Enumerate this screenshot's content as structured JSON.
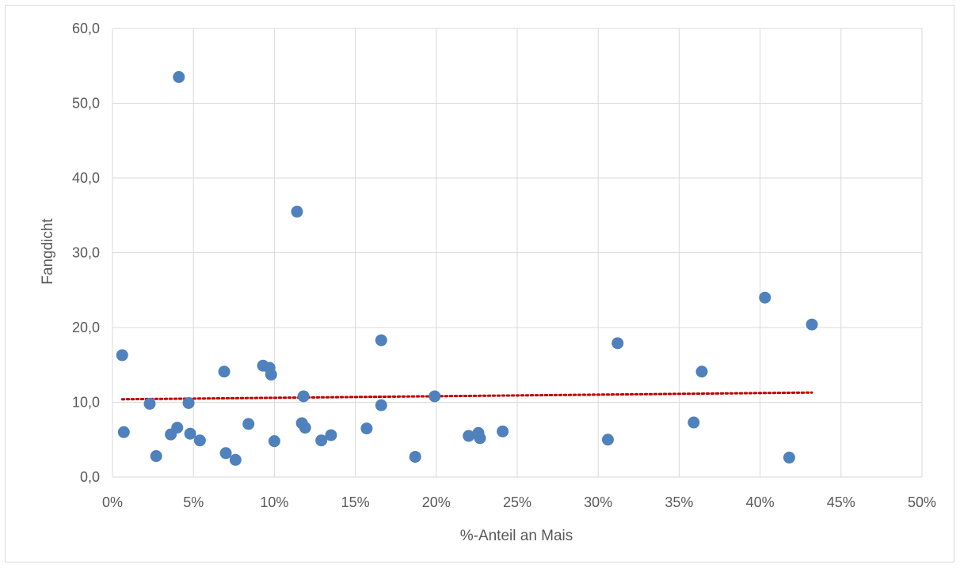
{
  "chart_data": {
    "type": "scatter",
    "xlabel": "%-Anteil an Mais",
    "ylabel": "Fangdicht",
    "xlim": [
      0,
      0.5
    ],
    "ylim": [
      0,
      60
    ],
    "x_ticks": [
      "0%",
      "5%",
      "10%",
      "15%",
      "20%",
      "25%",
      "30%",
      "35%",
      "40%",
      "45%",
      "50%"
    ],
    "y_ticks": [
      "0,0",
      "10,0",
      "20,0",
      "30,0",
      "40,0",
      "50,0",
      "60,0"
    ],
    "grid": true,
    "points": [
      {
        "x": 0.006,
        "y": 16.3
      },
      {
        "x": 0.007,
        "y": 6.0
      },
      {
        "x": 0.023,
        "y": 9.8
      },
      {
        "x": 0.027,
        "y": 2.8
      },
      {
        "x": 0.036,
        "y": 5.7
      },
      {
        "x": 0.04,
        "y": 6.6
      },
      {
        "x": 0.041,
        "y": 53.5
      },
      {
        "x": 0.047,
        "y": 9.9
      },
      {
        "x": 0.048,
        "y": 5.8
      },
      {
        "x": 0.054,
        "y": 4.9
      },
      {
        "x": 0.069,
        "y": 14.1
      },
      {
        "x": 0.07,
        "y": 3.2
      },
      {
        "x": 0.076,
        "y": 2.3
      },
      {
        "x": 0.084,
        "y": 7.1
      },
      {
        "x": 0.093,
        "y": 14.9
      },
      {
        "x": 0.097,
        "y": 14.6
      },
      {
        "x": 0.098,
        "y": 13.7
      },
      {
        "x": 0.1,
        "y": 4.8
      },
      {
        "x": 0.114,
        "y": 35.5
      },
      {
        "x": 0.117,
        "y": 7.2
      },
      {
        "x": 0.118,
        "y": 10.8
      },
      {
        "x": 0.119,
        "y": 6.6
      },
      {
        "x": 0.129,
        "y": 4.9
      },
      {
        "x": 0.135,
        "y": 5.6
      },
      {
        "x": 0.157,
        "y": 6.5
      },
      {
        "x": 0.166,
        "y": 18.3
      },
      {
        "x": 0.166,
        "y": 9.6
      },
      {
        "x": 0.187,
        "y": 2.7
      },
      {
        "x": 0.199,
        "y": 10.8
      },
      {
        "x": 0.22,
        "y": 5.5
      },
      {
        "x": 0.226,
        "y": 5.9
      },
      {
        "x": 0.227,
        "y": 5.2
      },
      {
        "x": 0.241,
        "y": 6.1
      },
      {
        "x": 0.306,
        "y": 5.0
      },
      {
        "x": 0.312,
        "y": 17.9
      },
      {
        "x": 0.359,
        "y": 7.3
      },
      {
        "x": 0.364,
        "y": 14.1
      },
      {
        "x": 0.403,
        "y": 24.0
      },
      {
        "x": 0.418,
        "y": 2.6
      },
      {
        "x": 0.432,
        "y": 20.4
      }
    ],
    "trendline": {
      "x": [
        0.006,
        0.432
      ],
      "y": [
        10.4,
        11.3
      ]
    },
    "colors": {
      "point": "#4f81bd",
      "trendline": "#c00000",
      "grid": "#d9d9d9",
      "axis_text": "#595959"
    }
  }
}
